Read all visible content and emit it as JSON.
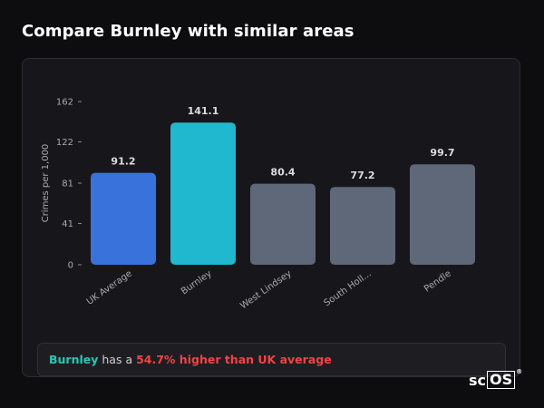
{
  "page": {
    "title": "Compare Burnley with similar areas"
  },
  "chart_data": {
    "type": "bar",
    "ylabel": "Crimes per 1,000",
    "yticks": [
      0,
      41,
      81,
      122,
      162
    ],
    "ylim": [
      0,
      162
    ],
    "categories": [
      "UK Average",
      "Burnley",
      "West Lindsey",
      "South Holl...",
      "Pendle"
    ],
    "values": [
      91.2,
      141.1,
      80.4,
      77.2,
      99.7
    ],
    "value_labels": [
      "91.2",
      "141.1",
      "80.4",
      "77.2",
      "99.7"
    ],
    "colors": [
      "#3a72dc",
      "#20b8cf",
      "#5e6878",
      "#5e6878",
      "#5e6878"
    ],
    "grid": false
  },
  "summary": {
    "area": "Burnley",
    "connector": " has a ",
    "difference": "54.7% higher than UK average"
  },
  "logo": {
    "prefix": "sc",
    "boxed": "OS",
    "mark": "®"
  }
}
